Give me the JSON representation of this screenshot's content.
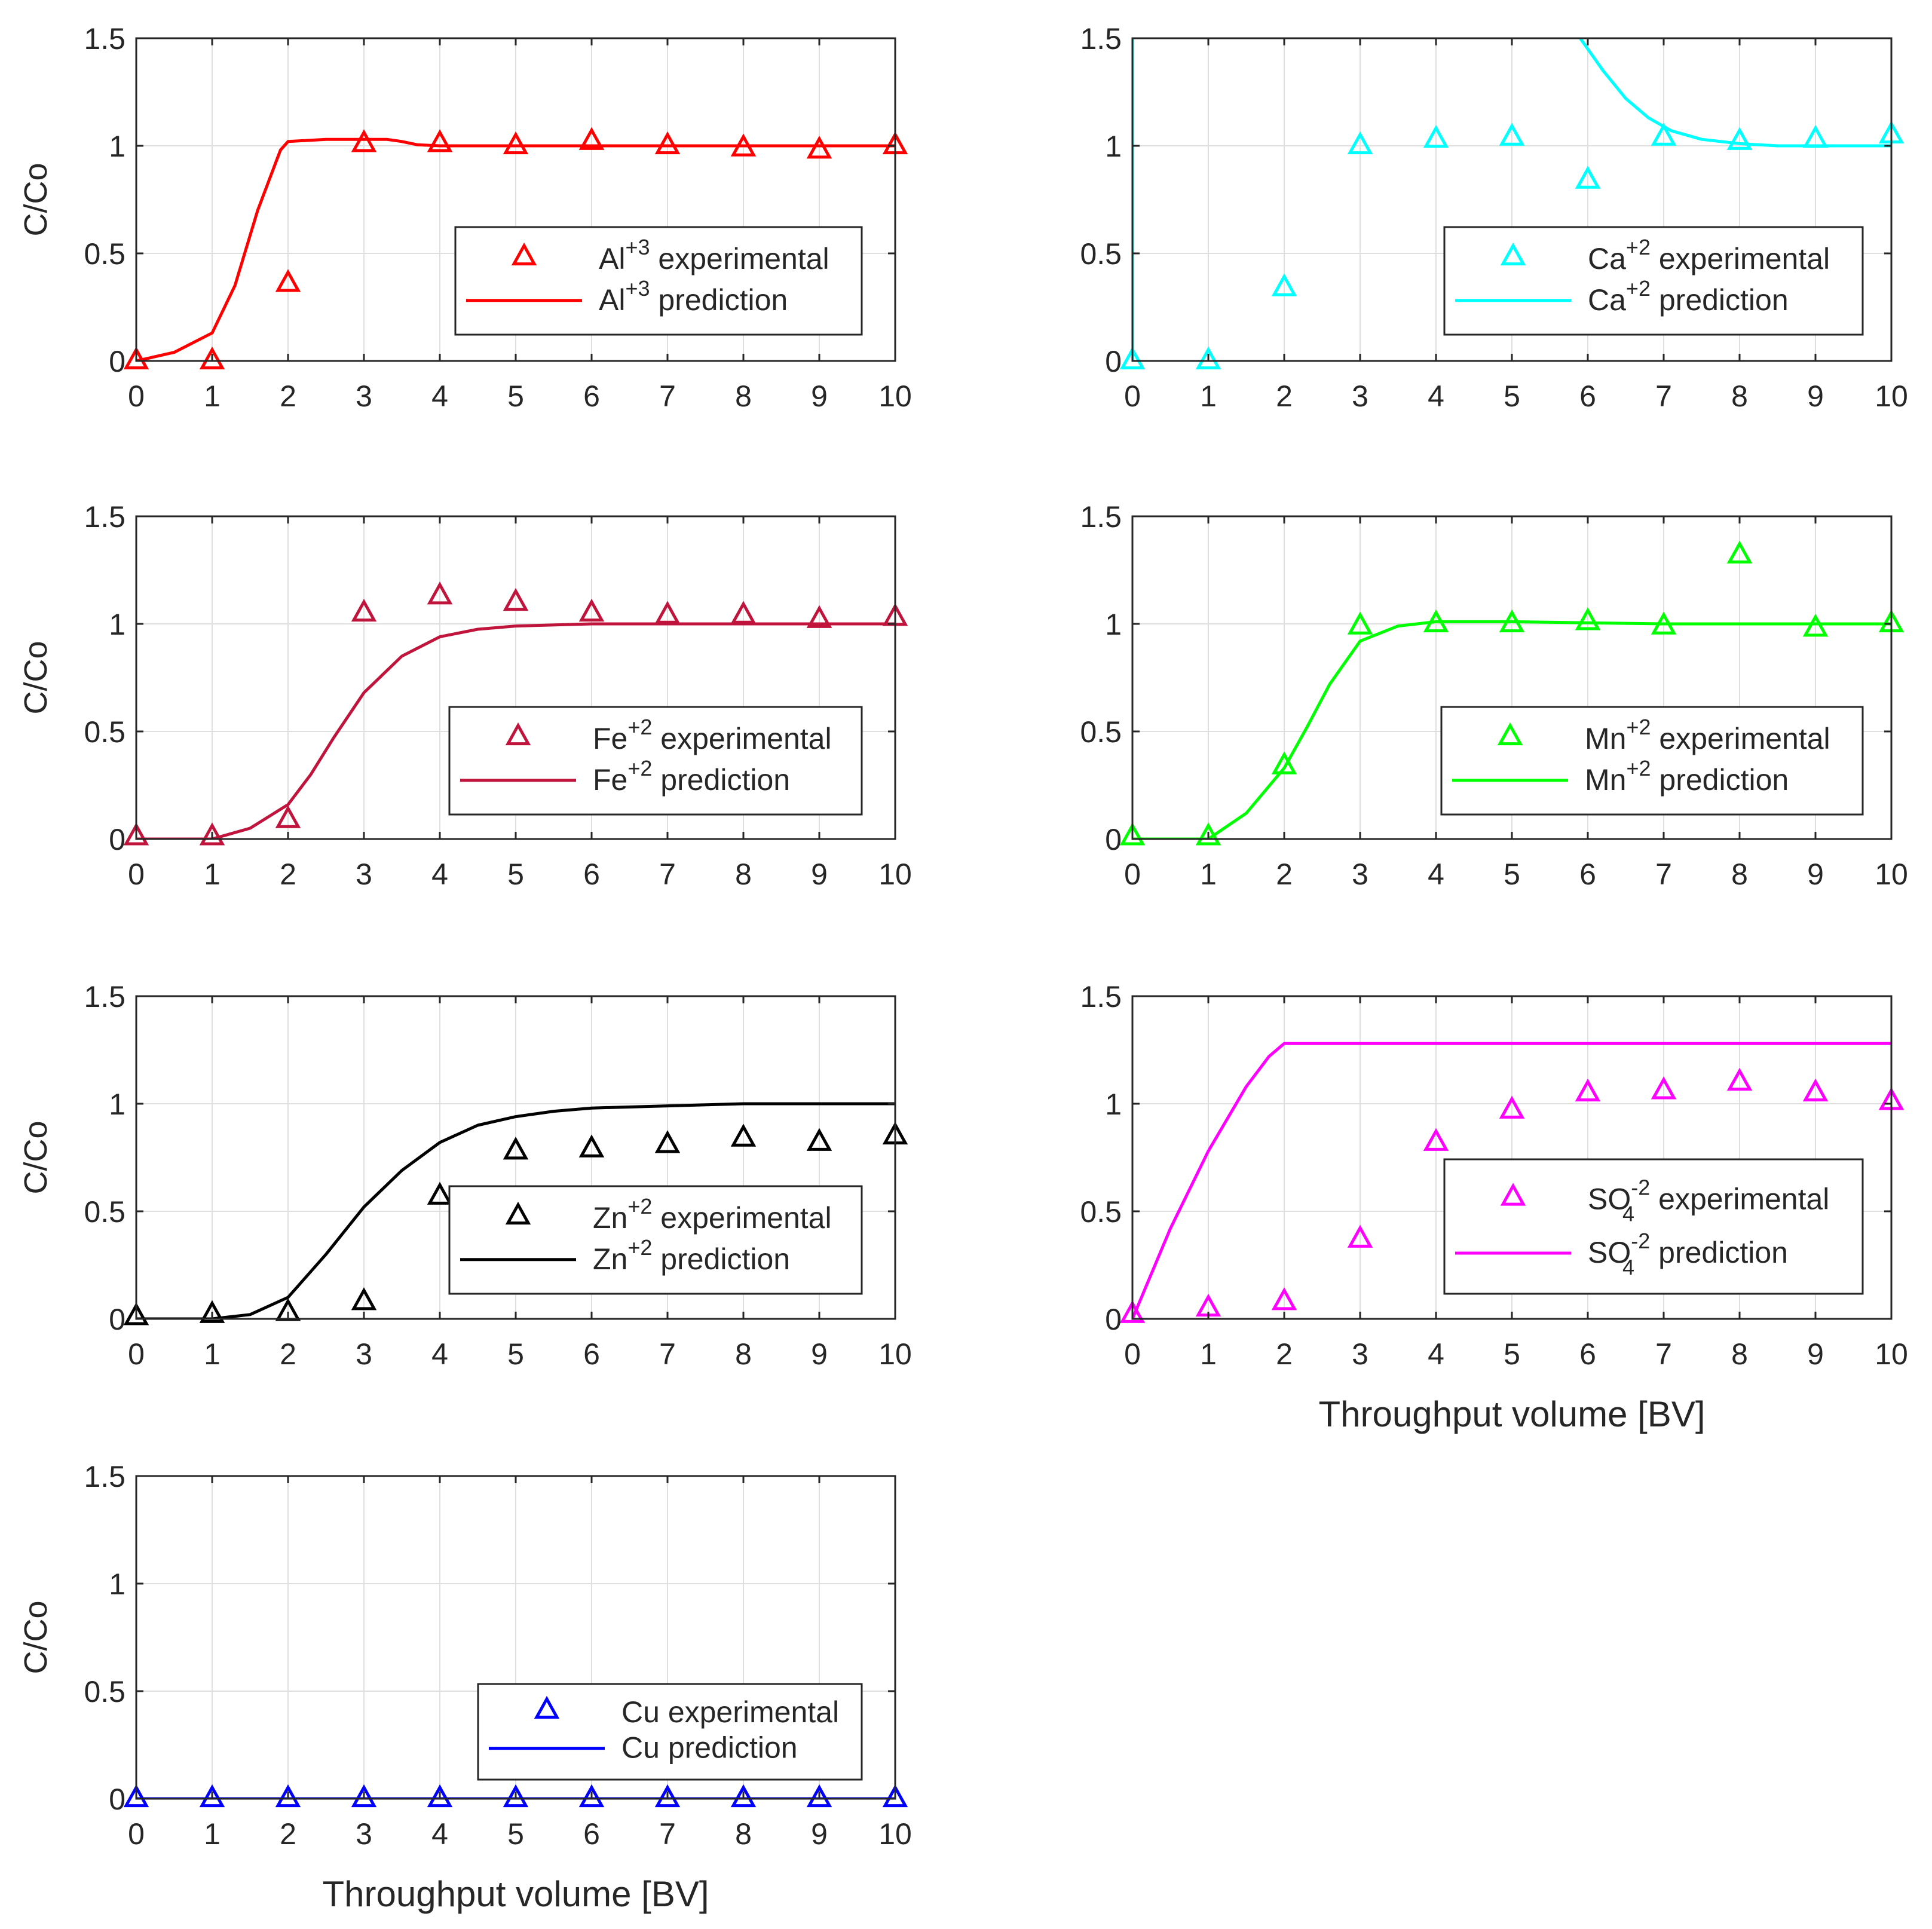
{
  "figure": {
    "xlabel": "Throughput volume [BV]",
    "ylabel": "C/Co"
  },
  "chart_data": [
    {
      "type": "line",
      "id": "al",
      "xlabel": "",
      "ylabel": "C/Co",
      "xlim": [
        0,
        10
      ],
      "ylim": [
        0,
        1.5
      ],
      "xticks": [
        "0",
        "1",
        "2",
        "3",
        "4",
        "5",
        "6",
        "7",
        "8",
        "9",
        "10"
      ],
      "yticks": [
        "0",
        "0.5",
        "1",
        "1.5"
      ],
      "grid": true,
      "color": "#ff0000",
      "legend": {
        "placement": "center-right",
        "ion": "Al",
        "charge": "+3",
        "sub": "",
        "experimental_label": "experimental",
        "prediction_label": "prediction"
      },
      "experimental": {
        "x": [
          0,
          1,
          2,
          3,
          4,
          5,
          6,
          7,
          8,
          9,
          10
        ],
        "y": [
          0.0,
          0.0,
          0.36,
          1.01,
          1.01,
          1.0,
          1.02,
          1.0,
          0.99,
          0.98,
          1.0
        ]
      },
      "prediction": {
        "x": [
          0,
          0.5,
          1,
          1.3,
          1.6,
          1.9,
          2,
          2.5,
          3,
          3.3,
          3.5,
          3.7,
          4,
          5,
          6,
          7,
          8,
          9,
          10
        ],
        "y": [
          0,
          0.04,
          0.13,
          0.35,
          0.7,
          0.98,
          1.02,
          1.03,
          1.03,
          1.03,
          1.02,
          1.005,
          1.0,
          1.0,
          1.0,
          1.0,
          1.0,
          1.0,
          1.0
        ]
      }
    },
    {
      "type": "line",
      "id": "ca",
      "xlabel": "",
      "ylabel": "",
      "xlim": [
        0,
        10
      ],
      "ylim": [
        0,
        1.5
      ],
      "xticks": [
        "0",
        "1",
        "2",
        "3",
        "4",
        "5",
        "6",
        "7",
        "8",
        "9",
        "10"
      ],
      "yticks": [
        "0",
        "0.5",
        "1",
        "1.5"
      ],
      "grid": true,
      "color": "#00ffff",
      "legend": {
        "placement": "center-right",
        "ion": "Ca",
        "charge": "+2",
        "sub": "",
        "experimental_label": "experimental",
        "prediction_label": "prediction"
      },
      "experimental": {
        "x": [
          0,
          1,
          2,
          3,
          4,
          5,
          6,
          7,
          8,
          9,
          10
        ],
        "y": [
          0.0,
          0.0,
          0.34,
          1.0,
          1.03,
          1.04,
          0.84,
          1.04,
          1.02,
          1.03,
          1.05
        ]
      },
      "prediction_segments": [
        {
          "x": [
            0,
            0
          ],
          "y": [
            0,
            1.5
          ]
        },
        {
          "x": [
            5.9,
            6.2,
            6.5,
            6.8,
            7.1,
            7.5,
            8,
            8.5,
            9,
            10
          ],
          "y": [
            1.5,
            1.35,
            1.22,
            1.13,
            1.07,
            1.03,
            1.01,
            1.0,
            1.0,
            1.0
          ]
        }
      ]
    },
    {
      "type": "line",
      "id": "fe",
      "xlabel": "",
      "ylabel": "C/Co",
      "xlim": [
        0,
        10
      ],
      "ylim": [
        0,
        1.5
      ],
      "xticks": [
        "0",
        "1",
        "2",
        "3",
        "4",
        "5",
        "6",
        "7",
        "8",
        "9",
        "10"
      ],
      "yticks": [
        "0",
        "0.5",
        "1",
        "1.5"
      ],
      "grid": true,
      "color": "#c0143c",
      "legend": {
        "placement": "center-right",
        "ion": "Fe",
        "charge": "+2",
        "sub": "",
        "experimental_label": "experimental",
        "prediction_label": "prediction"
      },
      "experimental": {
        "x": [
          0,
          1,
          2,
          3,
          4,
          5,
          6,
          7,
          8,
          9,
          10
        ],
        "y": [
          0.01,
          0.01,
          0.09,
          1.05,
          1.13,
          1.1,
          1.05,
          1.04,
          1.04,
          1.02,
          1.03
        ]
      },
      "prediction": {
        "x": [
          0,
          0.5,
          1,
          1.5,
          2,
          2.3,
          2.6,
          3,
          3.5,
          4,
          4.5,
          5,
          6,
          7,
          8,
          9,
          10
        ],
        "y": [
          0,
          0,
          0,
          0.05,
          0.16,
          0.3,
          0.47,
          0.68,
          0.85,
          0.94,
          0.975,
          0.99,
          1.0,
          1.0,
          1.0,
          1.0,
          1.0
        ]
      }
    },
    {
      "type": "line",
      "id": "mn",
      "xlabel": "",
      "ylabel": "",
      "xlim": [
        0,
        10
      ],
      "ylim": [
        0,
        1.5
      ],
      "xticks": [
        "0",
        "1",
        "2",
        "3",
        "4",
        "5",
        "6",
        "7",
        "8",
        "9",
        "10"
      ],
      "yticks": [
        "0",
        "0.5",
        "1",
        "1.5"
      ],
      "grid": true,
      "color": "#00ff00",
      "legend": {
        "placement": "center-right",
        "ion": "Mn",
        "charge": "+2",
        "sub": "",
        "experimental_label": "experimental",
        "prediction_label": "prediction"
      },
      "experimental": {
        "x": [
          0,
          1,
          2,
          3,
          4,
          5,
          6,
          7,
          8,
          9,
          10
        ],
        "y": [
          0.01,
          0.01,
          0.34,
          0.99,
          1.0,
          1.0,
          1.01,
          0.99,
          1.32,
          0.98,
          1.0
        ]
      },
      "prediction": {
        "x": [
          0,
          0.5,
          1,
          1.5,
          2,
          2.3,
          2.6,
          3,
          3.5,
          4,
          5,
          6,
          7,
          8,
          9,
          10
        ],
        "y": [
          0,
          0,
          0,
          0.12,
          0.33,
          0.52,
          0.72,
          0.92,
          0.99,
          1.01,
          1.01,
          1.005,
          1.0,
          1.0,
          1.0,
          1.0
        ]
      }
    },
    {
      "type": "line",
      "id": "zn",
      "xlabel": "",
      "ylabel": "C/Co",
      "xlim": [
        0,
        10
      ],
      "ylim": [
        0,
        1.5
      ],
      "xticks": [
        "0",
        "1",
        "2",
        "3",
        "4",
        "5",
        "6",
        "7",
        "8",
        "9",
        "10"
      ],
      "yticks": [
        "0",
        "0.5",
        "1",
        "1.5"
      ],
      "grid": true,
      "color": "#000000",
      "legend": {
        "placement": "center-right",
        "ion": "Zn",
        "charge": "+2",
        "sub": "",
        "experimental_label": "experimental",
        "prediction_label": "prediction"
      },
      "experimental": {
        "x": [
          0,
          1,
          2,
          3,
          4,
          5,
          6,
          7,
          8,
          9,
          10
        ],
        "y": [
          0.01,
          0.02,
          0.03,
          0.08,
          0.57,
          0.78,
          0.79,
          0.81,
          0.84,
          0.82,
          0.85
        ]
      },
      "prediction": {
        "x": [
          0,
          0.5,
          1,
          1.5,
          2,
          2.5,
          3,
          3.5,
          4,
          4.5,
          5,
          5.5,
          6,
          7,
          8,
          9,
          10
        ],
        "y": [
          0,
          0,
          0,
          0.02,
          0.1,
          0.3,
          0.52,
          0.69,
          0.82,
          0.9,
          0.94,
          0.965,
          0.98,
          0.99,
          1.0,
          1.0,
          1.0
        ]
      }
    },
    {
      "type": "line",
      "id": "so4",
      "xlabel": "Throughput volume [BV]",
      "ylabel": "",
      "xlim": [
        0,
        10
      ],
      "ylim": [
        0,
        1.5
      ],
      "xticks": [
        "0",
        "1",
        "2",
        "3",
        "4",
        "5",
        "6",
        "7",
        "8",
        "9",
        "10"
      ],
      "yticks": [
        "0",
        "0.5",
        "1",
        "1.5"
      ],
      "grid": true,
      "color": "#ff00ff",
      "legend": {
        "placement": "center-right",
        "ion": "SO",
        "charge": "-2",
        "sub": "4",
        "experimental_label": "experimental",
        "prediction_label": "prediction"
      },
      "experimental": {
        "x": [
          0,
          1,
          2,
          3,
          4,
          5,
          6,
          7,
          8,
          9,
          10
        ],
        "y": [
          0.02,
          0.05,
          0.08,
          0.37,
          0.82,
          0.97,
          1.05,
          1.06,
          1.1,
          1.05,
          1.01
        ]
      },
      "prediction": {
        "x": [
          0,
          0.5,
          1,
          1.5,
          1.8,
          2,
          3,
          4,
          5,
          6,
          7,
          8,
          9,
          10
        ],
        "y": [
          0,
          0.42,
          0.78,
          1.08,
          1.22,
          1.28,
          1.28,
          1.28,
          1.28,
          1.28,
          1.28,
          1.28,
          1.28,
          1.28
        ]
      }
    },
    {
      "type": "line",
      "id": "cu",
      "xlabel": "Throughput volume [BV]",
      "ylabel": "C/Co",
      "xlim": [
        0,
        10
      ],
      "ylim": [
        0,
        1.5
      ],
      "xticks": [
        "0",
        "1",
        "2",
        "3",
        "4",
        "5",
        "6",
        "7",
        "8",
        "9",
        "10"
      ],
      "yticks": [
        "0",
        "0.5",
        "1",
        "1.5"
      ],
      "grid": true,
      "color": "#0000ff",
      "legend": {
        "placement": "bottom-right",
        "ion": "Cu",
        "charge": "",
        "sub": "",
        "experimental_label": "experimental",
        "prediction_label": "prediction"
      },
      "experimental": {
        "x": [
          0,
          1,
          2,
          3,
          4,
          5,
          6,
          7,
          8,
          9,
          10
        ],
        "y": [
          0,
          0,
          0,
          0,
          0,
          0,
          0,
          0,
          0,
          0,
          0
        ]
      },
      "prediction": {
        "x": [
          0,
          10
        ],
        "y": [
          0,
          0
        ]
      }
    }
  ]
}
